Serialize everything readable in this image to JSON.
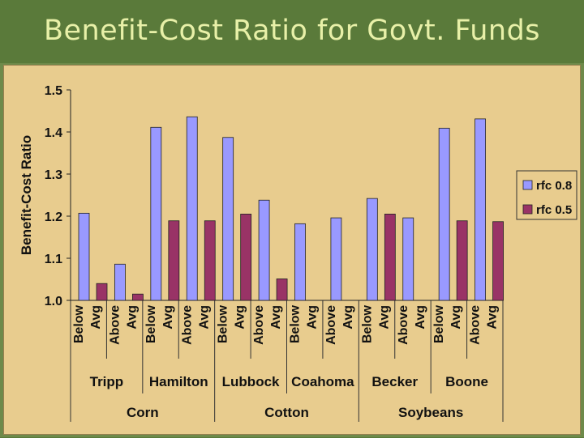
{
  "slide": {
    "title": "Benefit-Cost Ratio for Govt. Funds"
  },
  "colors": {
    "rfc08": "#9999ff",
    "rfc05": "#993366",
    "plot_bg": "#e8cc8e",
    "title_bar": "#5a7a3a"
  },
  "chart_data": {
    "type": "bar",
    "title": "",
    "ylabel": "Benefit-Cost Ratio",
    "xlabel": "",
    "ylim": [
      1.0,
      1.5
    ],
    "yticks": [
      "1.0",
      "1.1",
      "1.2",
      "1.3",
      "1.4",
      "1.5"
    ],
    "grid": false,
    "legend_position": "right",
    "categories": [
      "Below Avg",
      "Above Avg",
      "Below Avg",
      "Above Avg",
      "Below Avg",
      "Above Avg",
      "Below Avg",
      "Above Avg",
      "Below Avg",
      "Above Avg",
      "Below Avg",
      "Above Avg"
    ],
    "sites": [
      "Tripp",
      "Hamilton",
      "Lubbock",
      "Coahoma",
      "Becker",
      "Boone"
    ],
    "crops": [
      "Corn",
      "Cotton",
      "Soybeans"
    ],
    "series": [
      {
        "name": "rfc 0.8",
        "values": [
          1.207,
          1.086,
          1.411,
          1.436,
          1.387,
          1.238,
          1.182,
          1.196,
          1.242,
          1.196,
          1.409,
          1.431
        ]
      },
      {
        "name": "rfc 0.5",
        "values": [
          1.04,
          1.015,
          1.189,
          1.189,
          1.205,
          1.051,
          null,
          null,
          1.205,
          null,
          1.189,
          1.187
        ]
      }
    ]
  }
}
